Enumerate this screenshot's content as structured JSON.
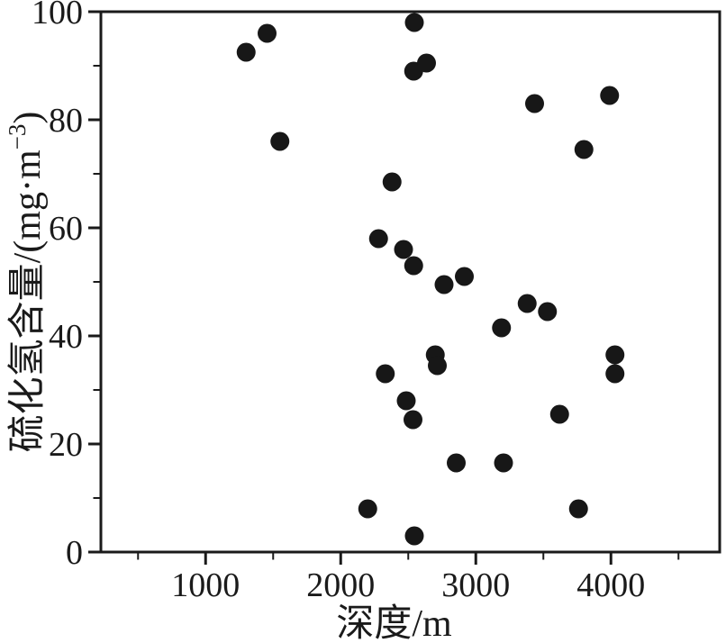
{
  "colors": {
    "background": "#ffffff",
    "axis": "#1a1a1a",
    "marker": "#171717",
    "text": "#1a1a1a"
  },
  "chart_data": {
    "type": "scatter",
    "title": "",
    "xlabel": "深度/m",
    "ylabel_base": "硫化氢含量/(mg·m",
    "ylabel_sup": "−3",
    "ylabel_end": ")",
    "xlim": [
      225,
      4805
    ],
    "ylim": [
      0,
      100
    ],
    "x_major_ticks": [
      1000,
      2000,
      3000,
      4000
    ],
    "x_minor_ticks": [
      500,
      1500,
      2500,
      3500,
      4500
    ],
    "y_major_ticks": [
      0,
      20,
      40,
      60,
      80,
      100
    ],
    "y_minor_ticks": [
      10,
      30,
      50,
      70,
      90
    ],
    "grid": false,
    "legend": null,
    "marker": {
      "shape": "circle",
      "radius_px": 10.5
    },
    "points": [
      [
        1300,
        92.5
      ],
      [
        1455,
        96
      ],
      [
        1550,
        76
      ],
      [
        2545,
        98
      ],
      [
        2540,
        89
      ],
      [
        2635,
        90.5
      ],
      [
        2380,
        68.5
      ],
      [
        2280,
        58
      ],
      [
        2465,
        56
      ],
      [
        2540,
        53
      ],
      [
        2765,
        49.5
      ],
      [
        2915,
        51
      ],
      [
        3435,
        83
      ],
      [
        3990,
        84.5
      ],
      [
        3800,
        74.5
      ],
      [
        3380,
        46
      ],
      [
        3530,
        44.5
      ],
      [
        3190,
        41.5
      ],
      [
        2700,
        36.5
      ],
      [
        2715,
        34.5
      ],
      [
        2330,
        33
      ],
      [
        2485,
        28
      ],
      [
        2535,
        24.5
      ],
      [
        3620,
        25.5
      ],
      [
        4030,
        36.5
      ],
      [
        4030,
        33
      ],
      [
        2855,
        16.5
      ],
      [
        3205,
        16.5
      ],
      [
        2200,
        8
      ],
      [
        3760,
        8
      ],
      [
        2545,
        3
      ]
    ]
  }
}
